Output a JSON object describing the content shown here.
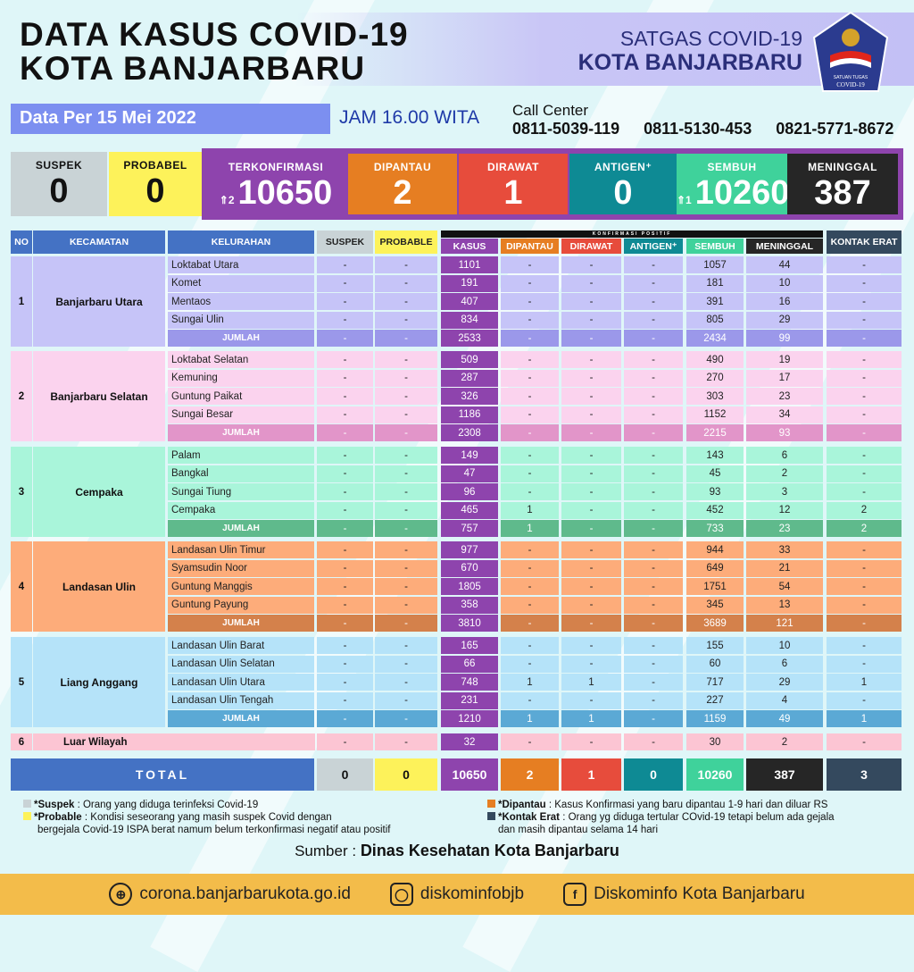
{
  "header": {
    "title_line1": "DATA KASUS COVID-19",
    "title_line2": "KOTA BANJARBARU",
    "org_line1": "SATGAS COVID-19",
    "org_line2": "KOTA BANJARBARU",
    "logo_text": "SATUAN TUGAS PENANGANAN COVID-19",
    "date": "Data Per 15 Mei 2022",
    "time": "JAM 16.00 WITA",
    "call_center_label": "Call Center",
    "phones": [
      "0811-5039-119",
      "0811-5130-453",
      "0821-5771-8672"
    ]
  },
  "summary": [
    {
      "label": "SUSPEK",
      "value": "0",
      "color": "#c9d3d6",
      "text": "#111"
    },
    {
      "label": "PROBABEL",
      "value": "0",
      "color": "#fdf25a",
      "text": "#111"
    },
    {
      "label": "TERKONFIRMASI",
      "value": "10650",
      "change": "2",
      "trend": "up",
      "color": "#8e44ad",
      "text": "#fff"
    },
    {
      "label": "DIPANTAU",
      "value": "2",
      "color": "#e67e22",
      "text": "#fff"
    },
    {
      "label": "DIRAWAT",
      "value": "1",
      "color": "#e74c3c",
      "text": "#fff"
    },
    {
      "label": "ANTIGEN⁺",
      "value": "0",
      "color": "#0e8a94",
      "text": "#fff"
    },
    {
      "label": "SEMBUH",
      "value": "10260",
      "change": "1",
      "trend": "up",
      "color": "#3fd29b",
      "text": "#fff"
    },
    {
      "label": "MENINGGAL",
      "value": "387",
      "color": "#262626",
      "text": "#fff"
    }
  ],
  "table": {
    "group_header": "KONFIRMASI POSITIF",
    "columns": [
      {
        "label": "NO",
        "color": "#4472c4"
      },
      {
        "label": "KECAMATAN",
        "color": "#4472c4"
      },
      {
        "label": "KELURAHAN",
        "color": "#4472c4"
      },
      {
        "label": "SUSPEK",
        "color": "#c9d3d6"
      },
      {
        "label": "PROBABLE",
        "color": "#fdf25a"
      },
      {
        "label": "KASUS",
        "color": "#8e44ad"
      },
      {
        "label": "DIPANTAU",
        "color": "#e67e22"
      },
      {
        "label": "DIRAWAT",
        "color": "#e74c3c"
      },
      {
        "label": "ANTIGEN⁺",
        "color": "#0e8a94"
      },
      {
        "label": "SEMBUH",
        "color": "#3fd29b"
      },
      {
        "label": "MENINGGAL",
        "color": "#262626"
      },
      {
        "label": "KONTAK ERAT",
        "color": "#34495e"
      }
    ],
    "subtotal_label": "JUMLAH",
    "groups": [
      {
        "no": "1",
        "kecamatan": "Banjarbaru Utara",
        "color": "#c6c4f8",
        "sum_color": "#9b98ea",
        "rows": [
          {
            "kelurahan": "Loktabat Utara",
            "values": [
              "-",
              "-",
              "1101",
              "-",
              "-",
              "-",
              "1057",
              "44",
              "-"
            ]
          },
          {
            "kelurahan": "Komet",
            "values": [
              "-",
              "-",
              "191",
              "-",
              "-",
              "-",
              "181",
              "10",
              "-"
            ]
          },
          {
            "kelurahan": "Mentaos",
            "values": [
              "-",
              "-",
              "407",
              "-",
              "-",
              "-",
              "391",
              "16",
              "-"
            ]
          },
          {
            "kelurahan": "Sungai Ulin",
            "values": [
              "-",
              "-",
              "834",
              "-",
              "-",
              "-",
              "805",
              "29",
              "-"
            ]
          }
        ],
        "jumlah": [
          "-",
          "-",
          "2533",
          "-",
          "-",
          "-",
          "2434",
          "99",
          "-"
        ]
      },
      {
        "no": "2",
        "kecamatan": "Banjarbaru Selatan",
        "color": "#fbd3ee",
        "sum_color": "#e295c9",
        "rows": [
          {
            "kelurahan": "Loktabat Selatan",
            "values": [
              "-",
              "-",
              "509",
              "-",
              "-",
              "-",
              "490",
              "19",
              "-"
            ]
          },
          {
            "kelurahan": "Kemuning",
            "values": [
              "-",
              "-",
              "287",
              "-",
              "-",
              "-",
              "270",
              "17",
              "-"
            ]
          },
          {
            "kelurahan": "Guntung Paikat",
            "values": [
              "-",
              "-",
              "326",
              "-",
              "-",
              "-",
              "303",
              "23",
              "-"
            ]
          },
          {
            "kelurahan": "Sungai Besar",
            "values": [
              "-",
              "-",
              "1186",
              "-",
              "-",
              "-",
              "1152",
              "34",
              "-"
            ]
          }
        ],
        "jumlah": [
          "-",
          "-",
          "2308",
          "-",
          "-",
          "-",
          "2215",
          "93",
          "-"
        ]
      },
      {
        "no": "3",
        "kecamatan": "Cempaka",
        "color": "#a9f5da",
        "sum_color": "#5fba8c",
        "rows": [
          {
            "kelurahan": "Palam",
            "values": [
              "-",
              "-",
              "149",
              "-",
              "-",
              "-",
              "143",
              "6",
              "-"
            ]
          },
          {
            "kelurahan": "Bangkal",
            "values": [
              "-",
              "-",
              "47",
              "-",
              "-",
              "-",
              "45",
              "2",
              "-"
            ]
          },
          {
            "kelurahan": "Sungai Tiung",
            "values": [
              "-",
              "-",
              "96",
              "-",
              "-",
              "-",
              "93",
              "3",
              "-"
            ]
          },
          {
            "kelurahan": "Cempaka",
            "values": [
              "-",
              "-",
              "465",
              "1",
              "-",
              "-",
              "452",
              "12",
              "2"
            ]
          }
        ],
        "jumlah": [
          "-",
          "-",
          "757",
          "1",
          "-",
          "-",
          "733",
          "23",
          "2"
        ]
      },
      {
        "no": "4",
        "kecamatan": "Landasan Ulin",
        "color": "#fdac7a",
        "sum_color": "#d4814b",
        "rows": [
          {
            "kelurahan": "Landasan Ulin Timur",
            "values": [
              "-",
              "-",
              "977",
              "-",
              "-",
              "-",
              "944",
              "33",
              "-"
            ]
          },
          {
            "kelurahan": "Syamsudin Noor",
            "values": [
              "-",
              "-",
              "670",
              "-",
              "-",
              "-",
              "649",
              "21",
              "-"
            ]
          },
          {
            "kelurahan": "Guntung Manggis",
            "values": [
              "-",
              "-",
              "1805",
              "-",
              "-",
              "-",
              "1751",
              "54",
              "-"
            ]
          },
          {
            "kelurahan": "Guntung Payung",
            "values": [
              "-",
              "-",
              "358",
              "-",
              "-",
              "-",
              "345",
              "13",
              "-"
            ]
          }
        ],
        "jumlah": [
          "-",
          "-",
          "3810",
          "-",
          "-",
          "-",
          "3689",
          "121",
          "-"
        ]
      },
      {
        "no": "5",
        "kecamatan": "Liang Anggang",
        "color": "#b5e3f9",
        "sum_color": "#5ba9d5",
        "rows": [
          {
            "kelurahan": "Landasan Ulin Barat",
            "values": [
              "-",
              "-",
              "165",
              "-",
              "-",
              "-",
              "155",
              "10",
              "-"
            ]
          },
          {
            "kelurahan": "Landasan Ulin Selatan",
            "values": [
              "-",
              "-",
              "66",
              "-",
              "-",
              "-",
              "60",
              "6",
              "-"
            ]
          },
          {
            "kelurahan": "Landasan Ulin Utara",
            "values": [
              "-",
              "-",
              "748",
              "1",
              "1",
              "-",
              "717",
              "29",
              "1"
            ]
          },
          {
            "kelurahan": "Landasan Ulin Tengah",
            "values": [
              "-",
              "-",
              "231",
              "-",
              "-",
              "-",
              "227",
              "4",
              "-"
            ]
          }
        ],
        "jumlah": [
          "-",
          "-",
          "1210",
          "1",
          "1",
          "-",
          "1159",
          "49",
          "1"
        ]
      }
    ],
    "other": {
      "no": "6",
      "label": "Luar Wilayah",
      "color": "#fcc5d3",
      "values": [
        "-",
        "-",
        "32",
        "-",
        "-",
        "-",
        "30",
        "2",
        "-"
      ]
    },
    "total": {
      "label": "TOTAL",
      "values": [
        "0",
        "0",
        "10650",
        "2",
        "1",
        "0",
        "10260",
        "387",
        "3"
      ]
    }
  },
  "legend": {
    "suspek": {
      "term": "*Suspek",
      "text": " : Orang yang diduga terinfeksi Covid-19",
      "color": "#c9d3d6"
    },
    "probable": {
      "term": "*Probable",
      "text": " : Kondisi seseorang yang masih suspek Covid dengan",
      "text2": "bergejala Covid-19 ISPA berat namum belum terkonfirmasi negatif atau positif",
      "color": "#fdf25a"
    },
    "dipantau": {
      "term": "*Dipantau",
      "text": " : Kasus Konfirmasi yang baru dipantau 1-9 hari dan diluar RS",
      "color": "#e67e22"
    },
    "kontak": {
      "term": "*Kontak Erat",
      "text": " : Orang yg diduga tertular COvid-19 tetapi belum ada gejala",
      "text2": "dan masih dipantau selama 14 hari",
      "color": "#34495e"
    }
  },
  "source": {
    "label": "Sumber :",
    "value": "Dinas Kesehatan Kota Banjarbaru"
  },
  "footer": {
    "website": "corona.banjarbarukota.go.id",
    "instagram": "diskominfobjb",
    "facebook": "Diskominfo Kota Banjarbaru",
    "color": "#f3bc4a"
  }
}
